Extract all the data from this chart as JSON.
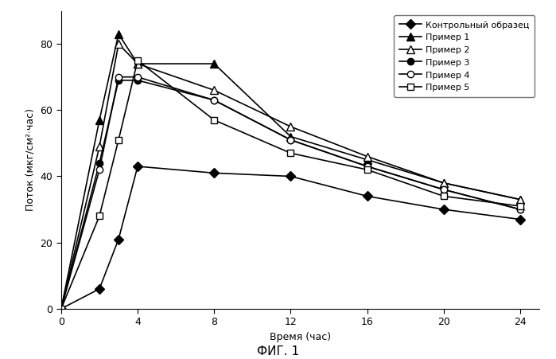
{
  "series": [
    {
      "label": "Контрольный образец",
      "x": [
        0,
        2,
        3,
        4,
        8,
        12,
        16,
        20,
        24
      ],
      "y": [
        0,
        6,
        21,
        43,
        41,
        40,
        34,
        30,
        27
      ],
      "marker": "D",
      "markersize": 6,
      "color": "#000000",
      "markerfacecolor": "#000000",
      "linewidth": 1.2
    },
    {
      "label": "Пример 1",
      "x": [
        0,
        2,
        3,
        4,
        8,
        12,
        16,
        20,
        24
      ],
      "y": [
        0,
        57,
        83,
        74,
        74,
        52,
        45,
        38,
        33
      ],
      "marker": "^",
      "markersize": 7,
      "color": "#000000",
      "markerfacecolor": "#000000",
      "linewidth": 1.2
    },
    {
      "label": "Пример 2",
      "x": [
        0,
        2,
        3,
        4,
        8,
        12,
        16,
        20,
        24
      ],
      "y": [
        0,
        49,
        80,
        74,
        66,
        55,
        46,
        38,
        33
      ],
      "marker": "^",
      "markersize": 7,
      "color": "#000000",
      "markerfacecolor": "#ffffff",
      "linewidth": 1.2
    },
    {
      "label": "Пример 3",
      "x": [
        0,
        2,
        3,
        4,
        8,
        12,
        16,
        20,
        24
      ],
      "y": [
        0,
        44,
        69,
        69,
        63,
        51,
        43,
        36,
        30
      ],
      "marker": "o",
      "markersize": 6,
      "color": "#000000",
      "markerfacecolor": "#000000",
      "linewidth": 1.2
    },
    {
      "label": "Пример 4",
      "x": [
        0,
        2,
        3,
        4,
        8,
        12,
        16,
        20,
        24
      ],
      "y": [
        0,
        42,
        70,
        70,
        63,
        51,
        43,
        36,
        30
      ],
      "marker": "o",
      "markersize": 6,
      "color": "#000000",
      "markerfacecolor": "#ffffff",
      "linewidth": 1.2
    },
    {
      "label": "Пример 5",
      "x": [
        0,
        2,
        3,
        4,
        8,
        12,
        16,
        20,
        24
      ],
      "y": [
        0,
        28,
        51,
        75,
        57,
        47,
        42,
        34,
        31
      ],
      "marker": "s",
      "markersize": 6,
      "color": "#000000",
      "markerfacecolor": "#ffffff",
      "linewidth": 1.2
    }
  ],
  "xlabel": "Время (час)",
  "ylabel": "Поток (мкг/см²·час)",
  "title": "ФИГ. 1",
  "xlim": [
    0,
    25
  ],
  "ylim": [
    0,
    90
  ],
  "yticks": [
    0,
    20,
    40,
    60,
    80
  ],
  "xticks": [
    0,
    4,
    8,
    12,
    16,
    20,
    24
  ],
  "background_color": "#ffffff",
  "legend_fontsize": 8,
  "axis_fontsize": 9,
  "tick_fontsize": 9,
  "title_fontsize": 11
}
